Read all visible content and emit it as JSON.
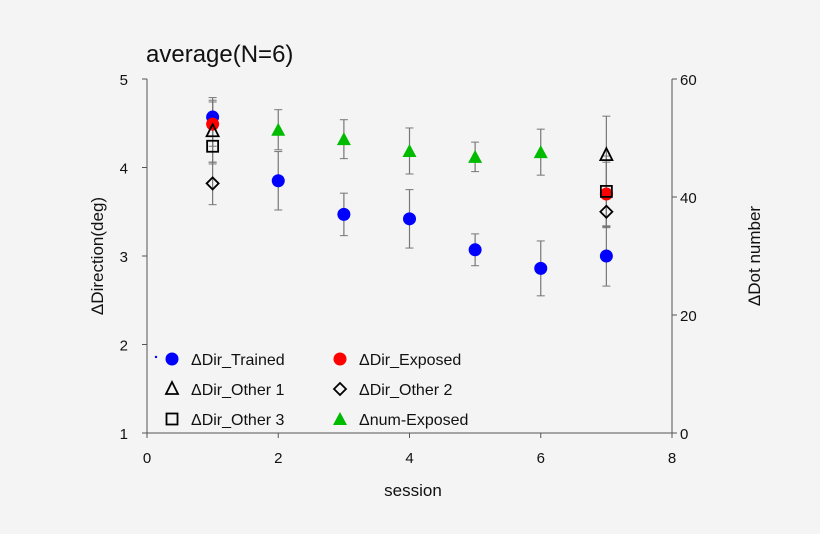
{
  "chart_data": {
    "type": "scatter",
    "title": "average(N=6)",
    "xlabel": "session",
    "ylabel": "ΔDirection(deg)",
    "y2label": "ΔDot number",
    "xlim": [
      0,
      8
    ],
    "ylim": [
      1,
      5
    ],
    "y2lim": [
      0,
      60
    ],
    "xticks": [
      "0",
      "2",
      "4",
      "6",
      "8"
    ],
    "yticks": [
      "1",
      "2",
      "3",
      "4",
      "5"
    ],
    "y2ticks": [
      "0",
      "20",
      "40",
      "60"
    ],
    "grid": false,
    "legend_position": "bottom-left",
    "series": [
      {
        "name": "ΔDir_Trained",
        "marker": "circle",
        "color": "#0000ff",
        "axis": "left",
        "x": [
          1,
          2,
          3,
          4,
          5,
          6,
          7
        ],
        "y": [
          4.57,
          3.85,
          3.47,
          3.42,
          3.07,
          2.86,
          3.0
        ],
        "err": [
          0.22,
          0.33,
          0.24,
          0.33,
          0.18,
          0.31,
          0.34
        ]
      },
      {
        "name": "ΔDir_Exposed",
        "marker": "circle",
        "color": "#ff0000",
        "axis": "left",
        "x": [
          1,
          7
        ],
        "y": [
          4.49,
          3.7
        ],
        "err": [
          0.25,
          0.36
        ]
      },
      {
        "name": "ΔDir_Other 1",
        "marker": "triangle-open",
        "color": "#000000",
        "axis": "left",
        "x": [
          1,
          7
        ],
        "y": [
          4.41,
          4.14
        ],
        "err": [
          0.35,
          0.44
        ]
      },
      {
        "name": "ΔDir_Other 2",
        "marker": "diamond-open",
        "color": "#000000",
        "axis": "left",
        "x": [
          1,
          7
        ],
        "y": [
          3.82,
          3.5
        ],
        "err": [
          0.24,
          0.18
        ]
      },
      {
        "name": "ΔDir_Other 3",
        "marker": "square-open",
        "color": "#000000",
        "axis": "left",
        "x": [
          1,
          7
        ],
        "y": [
          4.24,
          3.73
        ],
        "err": [
          0.2,
          0.4
        ]
      },
      {
        "name": "Δnum-Exposed",
        "marker": "triangle",
        "color": "#00bb00",
        "axis": "right",
        "x": [
          2,
          3,
          4,
          5,
          6
        ],
        "y": [
          51.4,
          49.8,
          47.8,
          46.8,
          47.6
        ],
        "err": [
          3.4,
          3.3,
          3.9,
          2.5,
          3.9
        ]
      }
    ]
  }
}
